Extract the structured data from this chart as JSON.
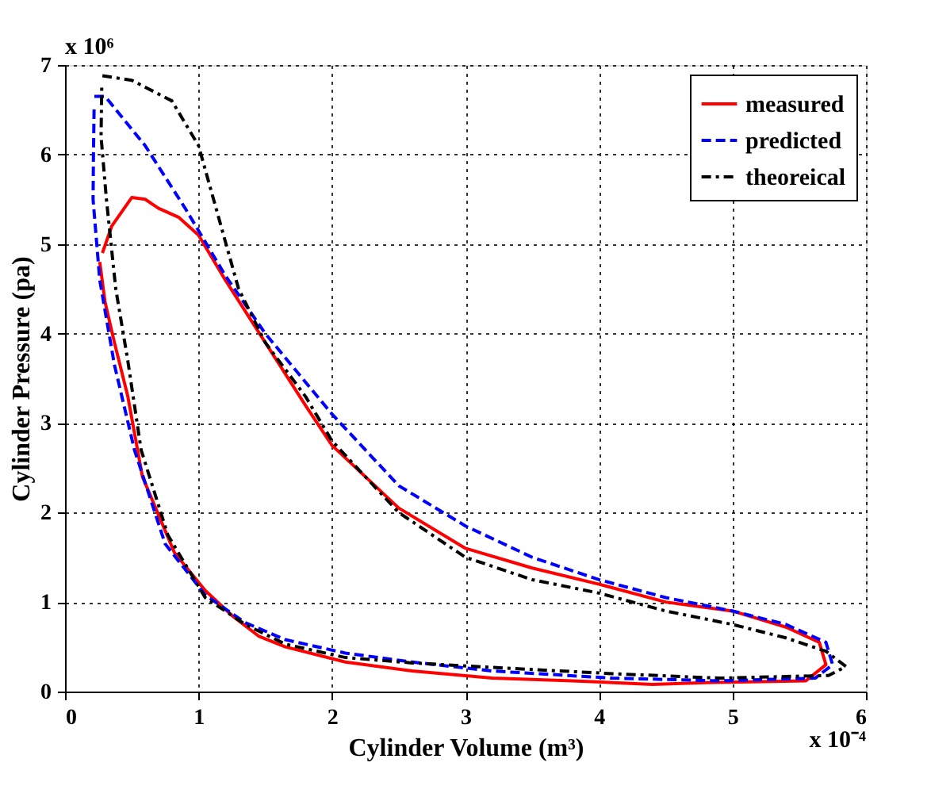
{
  "chart_data": {
    "type": "line",
    "xlabel": "Cylinder Volume (m³)",
    "ylabel": "Cylinder Pressure (pa)",
    "xlim": [
      0,
      6
    ],
    "xticks": [
      0,
      1,
      2,
      3,
      4,
      5,
      6
    ],
    "ylim": [
      0,
      7
    ],
    "yticks": [
      0,
      1,
      2,
      3,
      4,
      5,
      6,
      7
    ],
    "grid": true,
    "legend": "top right",
    "marker": "none",
    "annotations": [
      "x 10⁶",
      "x 10⁻⁴"
    ],
    "series": [
      {
        "name": "measured",
        "color": "#ff0000",
        "line_style": "solid",
        "x": [
          0.28,
          0.35,
          0.5,
          0.6,
          0.7,
          0.85,
          1.0,
          1.2,
          1.5,
          1.8,
          2.0,
          2.5,
          3.0,
          3.5,
          4.0,
          4.5,
          5.0,
          5.4,
          5.65,
          5.7,
          5.55,
          4.8,
          4.4,
          3.8,
          3.2,
          2.6,
          2.1,
          1.65,
          1.45,
          1.25,
          1.05,
          0.82,
          0.58,
          0.47,
          0.37,
          0.3,
          0.26
        ],
        "values": [
          4.9,
          5.2,
          5.52,
          5.5,
          5.4,
          5.3,
          5.1,
          4.6,
          3.9,
          3.2,
          2.75,
          2.05,
          1.6,
          1.38,
          1.2,
          1.0,
          0.9,
          0.72,
          0.55,
          0.3,
          0.12,
          0.1,
          0.08,
          0.12,
          0.15,
          0.23,
          0.33,
          0.5,
          0.62,
          0.85,
          1.13,
          1.55,
          2.4,
          3.3,
          3.9,
          4.35,
          4.8
        ]
      },
      {
        "name": "predicted",
        "color": "#0000ff",
        "line_style": "dashed",
        "x": [
          0.22,
          0.3,
          0.6,
          0.9,
          1.2,
          1.5,
          2.0,
          2.5,
          3.0,
          3.5,
          4.0,
          4.5,
          5.0,
          5.4,
          5.7,
          5.75,
          5.62,
          4.9,
          4.1,
          3.2,
          2.6,
          2.1,
          1.65,
          1.35,
          1.05,
          0.75,
          0.52,
          0.37,
          0.26,
          0.21,
          0.213,
          0.218
        ],
        "values": [
          6.65,
          6.65,
          6.1,
          5.4,
          4.65,
          4.0,
          3.1,
          2.3,
          1.85,
          1.5,
          1.25,
          1.05,
          0.9,
          0.75,
          0.55,
          0.3,
          0.15,
          0.12,
          0.15,
          0.23,
          0.33,
          0.43,
          0.58,
          0.77,
          1.08,
          1.65,
          2.7,
          3.65,
          4.6,
          5.5,
          6.0,
          6.55
        ]
      },
      {
        "name": "theoreical",
        "color": "#000000",
        "line_style": "dashdot",
        "x": [
          0.28,
          0.5,
          0.8,
          1.0,
          1.15,
          1.3,
          1.5,
          1.8,
          2.0,
          2.5,
          3.0,
          3.5,
          4.0,
          4.5,
          5.0,
          5.4,
          5.7,
          5.85,
          5.72,
          4.9,
          4.1,
          3.2,
          2.6,
          2.1,
          1.65,
          1.35,
          1.05,
          0.77,
          0.57,
          0.47,
          0.38,
          0.31,
          0.27,
          0.275
        ],
        "values": [
          6.88,
          6.83,
          6.6,
          6.1,
          5.3,
          4.5,
          3.9,
          3.3,
          2.8,
          2.0,
          1.5,
          1.25,
          1.1,
          0.9,
          0.75,
          0.6,
          0.45,
          0.28,
          0.18,
          0.15,
          0.2,
          0.27,
          0.32,
          0.38,
          0.53,
          0.75,
          1.05,
          1.75,
          2.7,
          3.7,
          4.5,
          5.5,
          6.2,
          6.75
        ]
      }
    ]
  }
}
